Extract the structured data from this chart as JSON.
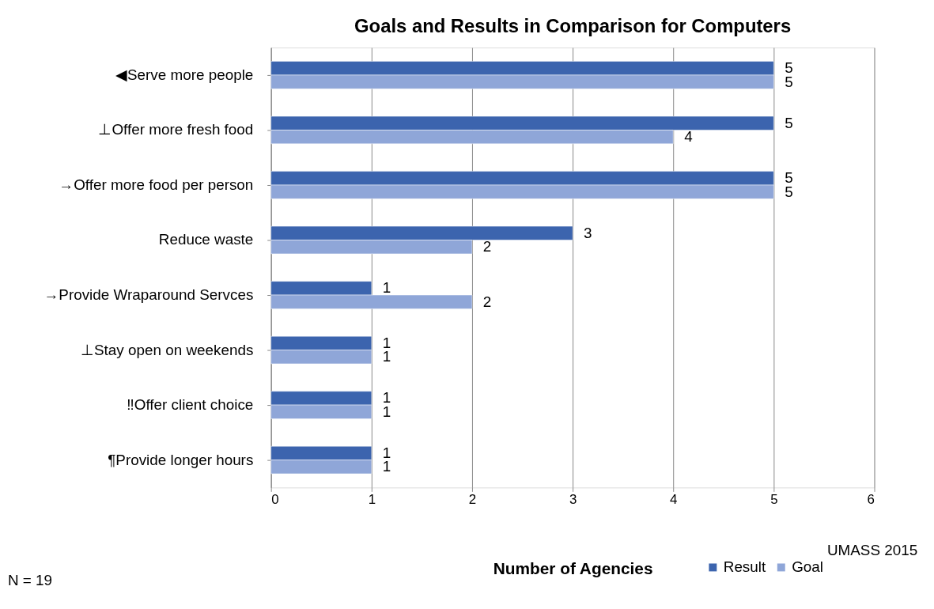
{
  "chart_data": {
    "type": "bar",
    "orientation": "horizontal",
    "title": "Goals and Results in Comparison for Computers",
    "categories": [
      "◀Serve more people",
      "⊥Offer more fresh food",
      "→Offer more food per person",
      "Reduce waste",
      "→Provide Wraparound Servces",
      "⊥Stay open on weekends",
      "‼Offer client choice",
      "¶Provide longer hours"
    ],
    "series": [
      {
        "name": "Result",
        "color": "#3c64ae",
        "values": [
          5,
          5,
          5,
          3,
          1,
          1,
          1,
          1
        ]
      },
      {
        "name": "Goal",
        "color": "#8fa6d8",
        "values": [
          5,
          4,
          5,
          2,
          2,
          1,
          1,
          1
        ]
      }
    ],
    "xlim": [
      0,
      6
    ],
    "xticks": [
      0,
      1,
      2,
      3,
      4,
      5,
      6
    ],
    "xlabel": "Number of Agencies",
    "grid": "x",
    "legend": "bottom",
    "data_labels": true,
    "annotations": [
      "N = 19",
      "UMASS 2015"
    ]
  }
}
